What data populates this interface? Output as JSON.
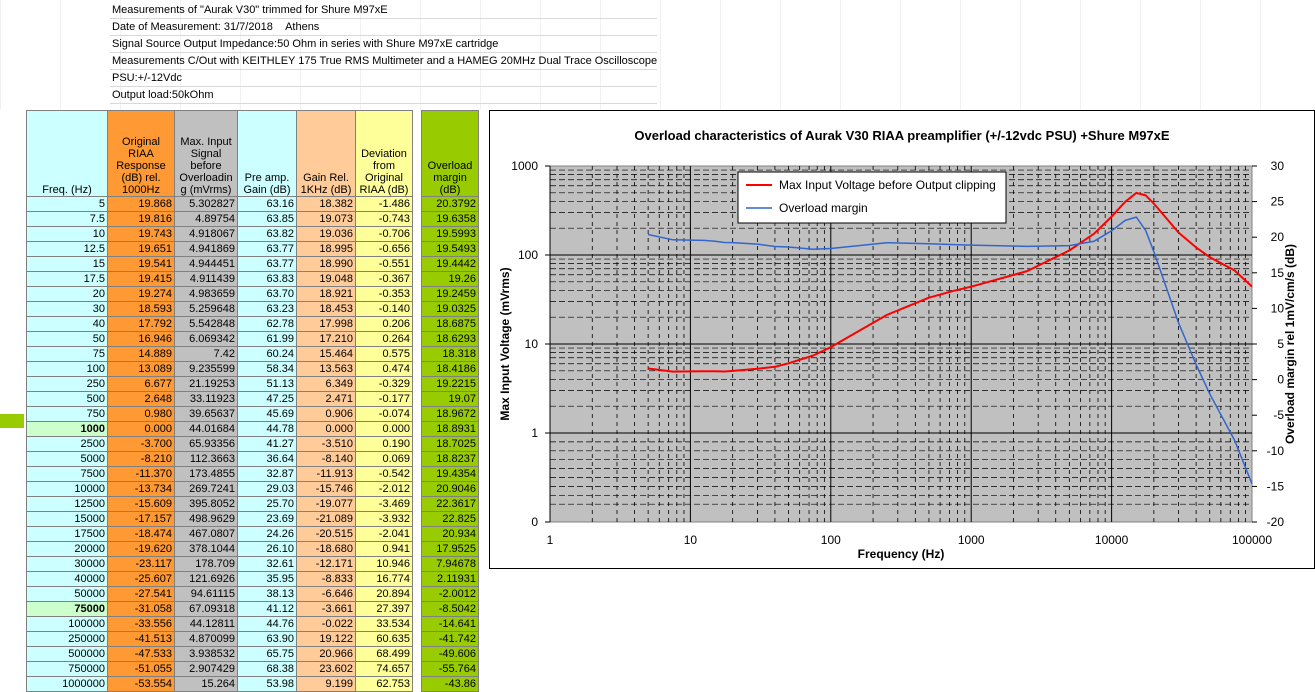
{
  "info": {
    "line1": "Measurements of \"Aurak V30\" trimmed for Shure M97xE",
    "line2_label": "Date of Measurement: 31/7/2018",
    "line2_city": "Athens",
    "line3": "Signal Source Output Impedance:50 Ohm in series with Shure M97xE cartridge",
    "line4": "Measurements C/Out with KEITHLEY 175 True RMS Multimeter and a HAMEG 20MHz Dual Trace Oscilloscope",
    "line5": "PSU:+/-12Vdc",
    "line6": "Output load:50kOhm"
  },
  "table": {
    "headers": [
      "Freq. (Hz)",
      "Original RIAA Response (dB) rel. 1000Hz",
      "Max. Input Signal before Overloadin g (mVrms)",
      "Pre amp. Gain (dB)",
      "Gain Rel. 1KHz (dB)",
      "Deviation from Original RIAA (dB)",
      "Overload margin (dB)"
    ],
    "rows": [
      [
        "5",
        "19.868",
        "5.302827",
        "63.16",
        "18.382",
        "-1.486",
        "20.3792"
      ],
      [
        "7.5",
        "19.816",
        "4.89754",
        "63.85",
        "19.073",
        "-0.743",
        "19.6358"
      ],
      [
        "10",
        "19.743",
        "4.918067",
        "63.82",
        "19.036",
        "-0.706",
        "19.5993"
      ],
      [
        "12.5",
        "19.651",
        "4.941869",
        "63.77",
        "18.995",
        "-0.656",
        "19.5493"
      ],
      [
        "15",
        "19.541",
        "4.944451",
        "63.77",
        "18.990",
        "-0.551",
        "19.4442"
      ],
      [
        "17.5",
        "19.415",
        "4.911439",
        "63.83",
        "19.048",
        "-0.367",
        "19.26"
      ],
      [
        "20",
        "19.274",
        "4.983659",
        "63.70",
        "18.921",
        "-0.353",
        "19.2459"
      ],
      [
        "30",
        "18.593",
        "5.259648",
        "63.23",
        "18.453",
        "-0.140",
        "19.0325"
      ],
      [
        "40",
        "17.792",
        "5.542848",
        "62.78",
        "17.998",
        "0.206",
        "18.6875"
      ],
      [
        "50",
        "16.946",
        "6.069342",
        "61.99",
        "17.210",
        "0.264",
        "18.6293"
      ],
      [
        "75",
        "14.889",
        "7.42",
        "60.24",
        "15.464",
        "0.575",
        "18.318"
      ],
      [
        "100",
        "13.089",
        "9.235599",
        "58.34",
        "13.563",
        "0.474",
        "18.4186"
      ],
      [
        "250",
        "6.677",
        "21.19253",
        "51.13",
        "6.349",
        "-0.329",
        "19.2215"
      ],
      [
        "500",
        "2.648",
        "33.11923",
        "47.25",
        "2.471",
        "-0.177",
        "19.07"
      ],
      [
        "750",
        "0.980",
        "39.65637",
        "45.69",
        "0.906",
        "-0.074",
        "18.9672"
      ],
      [
        "1000",
        "0.000",
        "44.01684",
        "44.78",
        "0.000",
        "0.000",
        "18.8931"
      ],
      [
        "2500",
        "-3.700",
        "65.93356",
        "41.27",
        "-3.510",
        "0.190",
        "18.7025"
      ],
      [
        "5000",
        "-8.210",
        "112.3663",
        "36.64",
        "-8.140",
        "0.069",
        "18.8237"
      ],
      [
        "7500",
        "-11.370",
        "173.4855",
        "32.87",
        "-11.913",
        "-0.542",
        "19.4354"
      ],
      [
        "10000",
        "-13.734",
        "269.7241",
        "29.03",
        "-15.746",
        "-2.012",
        "20.9046"
      ],
      [
        "12500",
        "-15.609",
        "395.8052",
        "25.70",
        "-19.077",
        "-3.469",
        "22.3617"
      ],
      [
        "15000",
        "-17.157",
        "498.9629",
        "23.69",
        "-21.089",
        "-3.932",
        "22.825"
      ],
      [
        "17500",
        "-18.474",
        "467.0807",
        "24.26",
        "-20.515",
        "-2.041",
        "20.934"
      ],
      [
        "20000",
        "-19.620",
        "378.1044",
        "26.10",
        "-18.680",
        "0.941",
        "17.9525"
      ],
      [
        "30000",
        "-23.117",
        "178.709",
        "32.61",
        "-12.171",
        "10.946",
        "7.94678"
      ],
      [
        "40000",
        "-25.607",
        "121.6926",
        "35.95",
        "-8.833",
        "16.774",
        "2.11931"
      ],
      [
        "50000",
        "-27.541",
        "94.61115",
        "38.13",
        "-6.646",
        "20.894",
        "-2.0012"
      ],
      [
        "75000",
        "-31.058",
        "67.09318",
        "41.12",
        "-3.661",
        "27.397",
        "-8.5042"
      ],
      [
        "100000",
        "-33.556",
        "44.12811",
        "44.76",
        "-0.022",
        "33.534",
        "-14.641"
      ],
      [
        "250000",
        "-41.513",
        "4.870099",
        "63.90",
        "19.122",
        "60.635",
        "-41.742"
      ],
      [
        "500000",
        "-47.533",
        "3.938532",
        "65.75",
        "20.966",
        "68.499",
        "-49.606"
      ],
      [
        "750000",
        "-51.055",
        "2.907429",
        "68.38",
        "23.602",
        "74.657",
        "-55.764"
      ],
      [
        "1000000",
        "-53.554",
        "15.264",
        "53.98",
        "9.199",
        "62.753",
        "-43.86"
      ]
    ]
  },
  "chart_data": {
    "type": "line",
    "title": "Overload characteristics of Aurak V30 RIAA preamplifier (+/-12vdc PSU) +Shure M97xE",
    "xlabel": "Frequency (Hz)",
    "ylabel": "Max Input Voltage (mVrms)",
    "y2label": "Overload margin rel 1mV/cm/s (dB)",
    "xscale": "log",
    "yscale": "log",
    "xlim": [
      1,
      100000
    ],
    "ylim": [
      0,
      1000
    ],
    "y2lim": [
      -20,
      30
    ],
    "x_ticks": [
      "1",
      "10",
      "100",
      "1000",
      "10000",
      "100000"
    ],
    "y_ticks": [
      "1000",
      "100",
      "10",
      "1",
      "0"
    ],
    "y2_ticks": [
      "30",
      "25",
      "20",
      "15",
      "10",
      "5",
      "0",
      "-5",
      "-10",
      "-15",
      "-20"
    ],
    "legend_position": "top-center",
    "x": [
      5,
      7.5,
      10,
      12.5,
      15,
      17.5,
      20,
      30,
      40,
      50,
      75,
      100,
      250,
      500,
      750,
      1000,
      2500,
      5000,
      7500,
      10000,
      12500,
      15000,
      17500,
      20000,
      30000,
      40000,
      50000,
      75000,
      100000
    ],
    "series": [
      {
        "name": "Max Input Voltage before Output clipping",
        "color": "#ff0000",
        "axis": "left",
        "values": [
          5.302827,
          4.89754,
          4.918067,
          4.941869,
          4.944451,
          4.911439,
          4.983659,
          5.259648,
          5.542848,
          6.069342,
          7.42,
          9.235599,
          21.19253,
          33.11923,
          39.65637,
          44.01684,
          65.93356,
          112.3663,
          173.4855,
          269.7241,
          395.8052,
          498.9629,
          467.0807,
          378.1044,
          178.709,
          121.6926,
          94.61115,
          67.09318,
          44.12811
        ]
      },
      {
        "name": "Overload margin",
        "color": "#3366cc",
        "axis": "right",
        "values": [
          20.3792,
          19.6358,
          19.5993,
          19.5493,
          19.4442,
          19.26,
          19.2459,
          19.0325,
          18.6875,
          18.6293,
          18.318,
          18.4186,
          19.2215,
          19.07,
          18.9672,
          18.8931,
          18.7025,
          18.8237,
          19.4354,
          20.9046,
          22.3617,
          22.825,
          20.934,
          17.9525,
          7.94678,
          2.11931,
          -2.0012,
          -8.5042,
          -14.641
        ]
      }
    ]
  }
}
